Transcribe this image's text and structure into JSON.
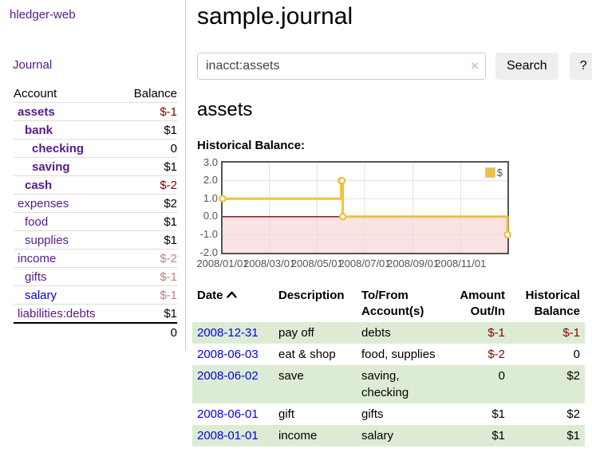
{
  "app": {
    "title": "hledger-web",
    "nav_journal": "Journal"
  },
  "sidebar": {
    "columns": {
      "account": "Account",
      "balance": "Balance"
    },
    "accounts": [
      {
        "name": "assets",
        "indent": 1,
        "balance": "$-1",
        "bold": true,
        "negative": true,
        "dim": false,
        "blue": false
      },
      {
        "name": "bank",
        "indent": 2,
        "balance": "$1",
        "bold": true,
        "negative": false,
        "dim": false,
        "blue": false
      },
      {
        "name": "checking",
        "indent": 3,
        "balance": "0",
        "bold": true,
        "negative": false,
        "dim": false,
        "blue": false
      },
      {
        "name": "saving",
        "indent": 3,
        "balance": "$1",
        "bold": true,
        "negative": false,
        "dim": false,
        "blue": false
      },
      {
        "name": "cash",
        "indent": 2,
        "balance": "$-2",
        "bold": true,
        "negative": true,
        "dim": false,
        "blue": false
      },
      {
        "name": "expenses",
        "indent": 1,
        "balance": "$2",
        "bold": false,
        "negative": false,
        "dim": false,
        "blue": false
      },
      {
        "name": "food",
        "indent": 2,
        "balance": "$1",
        "bold": false,
        "negative": false,
        "dim": false,
        "blue": false
      },
      {
        "name": "supplies",
        "indent": 2,
        "balance": "$1",
        "bold": false,
        "negative": false,
        "dim": false,
        "blue": false
      },
      {
        "name": "income",
        "indent": 1,
        "balance": "$-2",
        "bold": false,
        "negative": true,
        "dim": true,
        "blue": false
      },
      {
        "name": "gifts",
        "indent": 2,
        "balance": "$-1",
        "bold": false,
        "negative": true,
        "dim": true,
        "blue": false
      },
      {
        "name": "salary",
        "indent": 2,
        "balance": "$-1",
        "bold": false,
        "negative": true,
        "dim": true,
        "blue": true
      },
      {
        "name": "liabilities:debts",
        "indent": 1,
        "balance": "$1",
        "bold": false,
        "negative": false,
        "dim": false,
        "blue": false
      }
    ],
    "total": "0"
  },
  "header": {
    "title": "sample.journal"
  },
  "search": {
    "value": "inacct:assets",
    "clear_icon": "×",
    "button_label": "Search",
    "help_label": "?"
  },
  "account_page": {
    "heading": "assets",
    "chart_label": "Historical Balance:"
  },
  "chart_data": {
    "type": "line",
    "step": true,
    "title": "Historical Balance",
    "series": [
      {
        "name": "$",
        "color": "#edc240",
        "points": [
          [
            "2008-01-01",
            1
          ],
          [
            "2008-06-01",
            2
          ],
          [
            "2008-06-02",
            2
          ],
          [
            "2008-06-03",
            0
          ],
          [
            "2008-12-31",
            -1
          ]
        ]
      }
    ],
    "xlim": [
      "2008-01-01",
      "2008-12-31"
    ],
    "ylim": [
      -2,
      3
    ],
    "x_ticks": [
      "2008/01/01",
      "2008/03/01",
      "2008/05/01",
      "2008/07/01",
      "2008/09/01",
      "2008/11/01"
    ],
    "y_ticks": [
      "3.0",
      "2.0",
      "1.0",
      "0.0",
      "-1.0",
      "-2.0"
    ],
    "grid": true,
    "legend": "$",
    "legend_position": "top-right",
    "negative_region_color": "#fbe3e3",
    "zero_line_color": "#880000",
    "grid_color": "#e0e0e0",
    "border_color": "#545454"
  },
  "register": {
    "columns": {
      "date": "Date",
      "description": "Description",
      "accounts": "To/From Account(s)",
      "amount": "Amount Out/In",
      "balance": "Historical Balance"
    },
    "rows": [
      {
        "date": "2008-12-31",
        "description": "pay off",
        "accounts": "debts",
        "amount": "$-1",
        "balance": "$-1"
      },
      {
        "date": "2008-06-03",
        "description": "eat & shop",
        "accounts": "food, supplies",
        "amount": "$-2",
        "balance": "0"
      },
      {
        "date": "2008-06-02",
        "description": "save",
        "accounts": "saving, checking",
        "amount": "0",
        "balance": "$2"
      },
      {
        "date": "2008-06-01",
        "description": "gift",
        "accounts": "gifts",
        "amount": "$1",
        "balance": "$2"
      },
      {
        "date": "2008-01-01",
        "description": "income",
        "accounts": "salary",
        "amount": "$1",
        "balance": "$1"
      }
    ]
  },
  "colors": {
    "link_purple": "#551a8b",
    "link_blue": "#0000ee",
    "negative": "#880000",
    "negative_dimmed": "#c38080",
    "row_green": "#dcecd4",
    "series_gold": "#edc240"
  }
}
